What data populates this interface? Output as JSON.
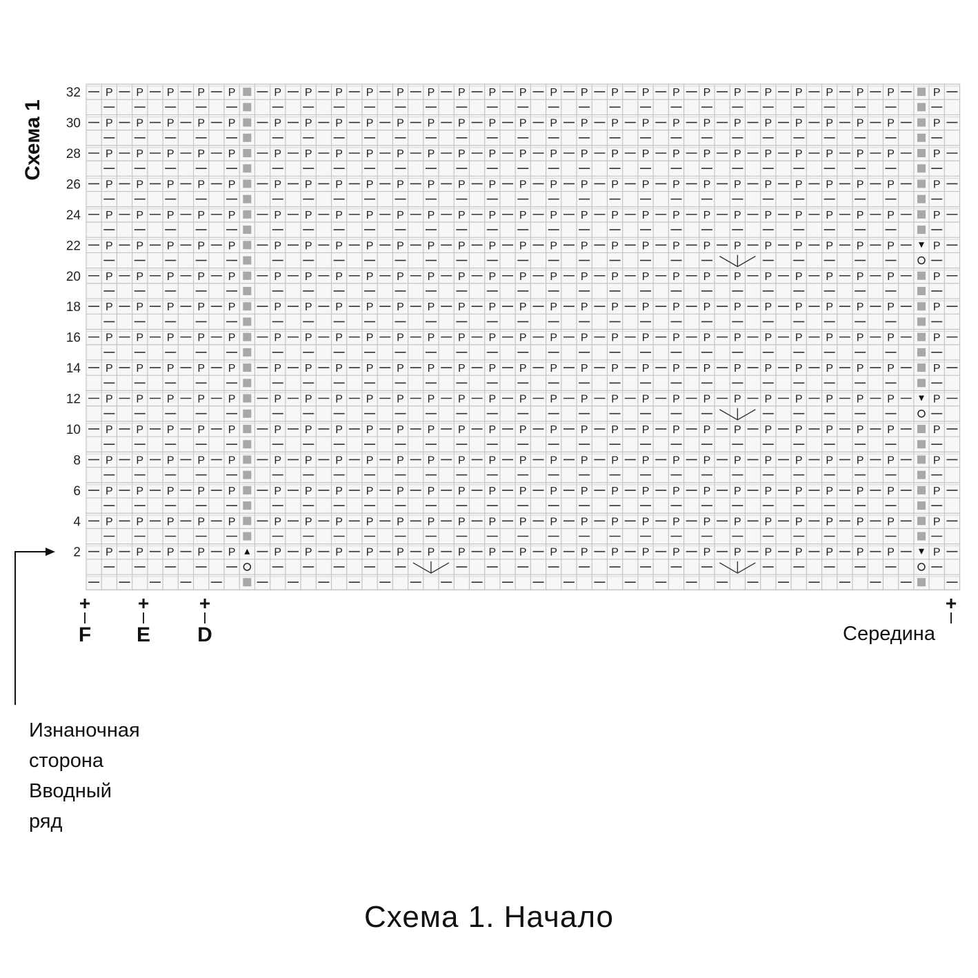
{
  "title": "Схема 1",
  "caption": "Схема 1. Начало",
  "markers": [
    {
      "label": "F"
    },
    {
      "label": "E"
    },
    {
      "label": "D"
    }
  ],
  "middle_label": "Середина",
  "note_lines": [
    "Изнаночная",
    "сторона",
    "Вводный",
    "ряд"
  ],
  "chart_data": {
    "type": "knitting-chart",
    "rows": 33,
    "columns": 57,
    "row_labels": [
      "2",
      "4",
      "6",
      "8",
      "10",
      "12",
      "14",
      "16",
      "18",
      "20",
      "22",
      "24",
      "26",
      "28",
      "30",
      "32"
    ],
    "purl_symbol": "P",
    "knit_symbol": "—",
    "gray_columns": [
      10,
      54
    ],
    "specials": [
      {
        "row": 2,
        "col": 10,
        "symbol": "triangle-up"
      },
      {
        "row": 1,
        "col": 10,
        "symbol": "circle"
      },
      {
        "row": 2,
        "col": 54,
        "symbol": "triangle-down"
      },
      {
        "row": 1,
        "col": 54,
        "symbol": "circle"
      },
      {
        "row": 12,
        "col": 54,
        "symbol": "triangle-down"
      },
      {
        "row": 11,
        "col": 54,
        "symbol": "circle"
      },
      {
        "row": 22,
        "col": 54,
        "symbol": "triangle-down"
      },
      {
        "row": 21,
        "col": 54,
        "symbol": "circle"
      },
      {
        "row": 1,
        "col": 22,
        "symbol": "v-increase"
      },
      {
        "row": 1,
        "col": 42,
        "symbol": "v-increase"
      },
      {
        "row": 11,
        "col": 42,
        "symbol": "v-increase"
      },
      {
        "row": 21,
        "col": 42,
        "symbol": "v-increase"
      }
    ]
  }
}
